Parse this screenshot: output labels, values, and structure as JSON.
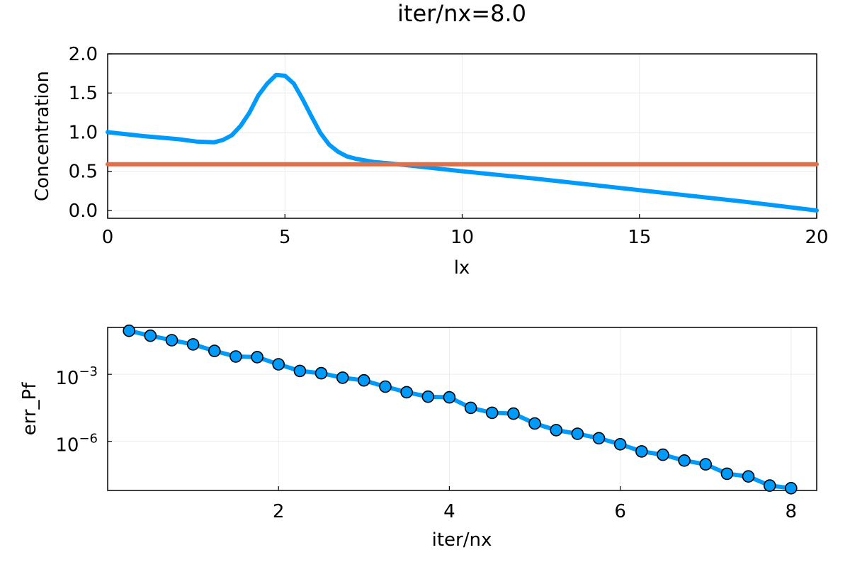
{
  "title": "iter/nx=8.0",
  "colors": {
    "series1": "#009AFA",
    "series2": "#E26F46",
    "axis": "#000000",
    "grid": "#ECECEC",
    "marker_edge": "#000000"
  },
  "chart_data": [
    {
      "type": "line",
      "title": "iter/nx=8.0",
      "xlabel": "lx",
      "ylabel": "Concentration",
      "xlim": [
        0,
        20
      ],
      "ylim": [
        -0.1,
        2.0
      ],
      "xticks": [
        0,
        5,
        10,
        15,
        20
      ],
      "xtick_labels": [
        "0",
        "5",
        "10",
        "15",
        "20"
      ],
      "yticks": [
        0.0,
        0.5,
        1.0,
        1.5,
        2.0
      ],
      "ytick_labels": [
        "0.0",
        "0.5",
        "1.0",
        "1.5",
        "2.0"
      ],
      "grid": true,
      "legend": "none",
      "series": [
        {
          "color": "#009AFA",
          "x": [
            0,
            1,
            2,
            2.5,
            3,
            3.25,
            3.5,
            3.75,
            4,
            4.25,
            4.5,
            4.75,
            5,
            5.25,
            5.5,
            5.75,
            6,
            6.25,
            6.5,
            6.75,
            7,
            7.5,
            8,
            9,
            10,
            12,
            14,
            16,
            18,
            20
          ],
          "y": [
            1.0,
            0.95,
            0.91,
            0.88,
            0.87,
            0.9,
            0.96,
            1.08,
            1.25,
            1.47,
            1.62,
            1.73,
            1.72,
            1.62,
            1.42,
            1.2,
            0.99,
            0.84,
            0.75,
            0.69,
            0.66,
            0.62,
            0.6,
            0.55,
            0.5,
            0.41,
            0.31,
            0.21,
            0.11,
            0.0
          ]
        },
        {
          "color": "#E26F46",
          "x": [
            0,
            20
          ],
          "y": [
            0.59,
            0.59
          ]
        }
      ]
    },
    {
      "type": "line",
      "xlabel": "iter/nx",
      "ylabel": "err_Pf",
      "yscale": "log",
      "xlim": [
        0.0,
        8.3
      ],
      "ylim_log10": [
        -8.2,
        -0.9
      ],
      "xticks": [
        2,
        4,
        6,
        8
      ],
      "xtick_labels": [
        "2",
        "4",
        "6",
        "8"
      ],
      "yticks_log10": [
        -3,
        -6
      ],
      "ytick_bases": [
        "10",
        "10"
      ],
      "ytick_exponents": [
        "−3",
        "−6"
      ],
      "grid": true,
      "legend": "none",
      "markers": true,
      "series": [
        {
          "color": "#009AFA",
          "x": [
            0.25,
            0.5,
            0.75,
            1.0,
            1.25,
            1.5,
            1.75,
            2.0,
            2.25,
            2.5,
            2.75,
            3.0,
            3.25,
            3.5,
            3.75,
            4.0,
            4.25,
            4.5,
            4.75,
            5.0,
            5.25,
            5.5,
            5.75,
            6.0,
            6.25,
            6.5,
            6.75,
            7.0,
            7.25,
            7.5,
            7.75,
            8.0
          ],
          "log10_y": [
            -1.05,
            -1.27,
            -1.47,
            -1.66,
            -1.95,
            -2.2,
            -2.23,
            -2.55,
            -2.85,
            -2.95,
            -3.15,
            -3.27,
            -3.55,
            -3.8,
            -4.0,
            -4.03,
            -4.5,
            -4.72,
            -4.76,
            -5.2,
            -5.5,
            -5.66,
            -5.86,
            -6.13,
            -6.45,
            -6.6,
            -6.86,
            -7.03,
            -7.45,
            -7.57,
            -7.98,
            -8.1
          ]
        }
      ]
    }
  ]
}
